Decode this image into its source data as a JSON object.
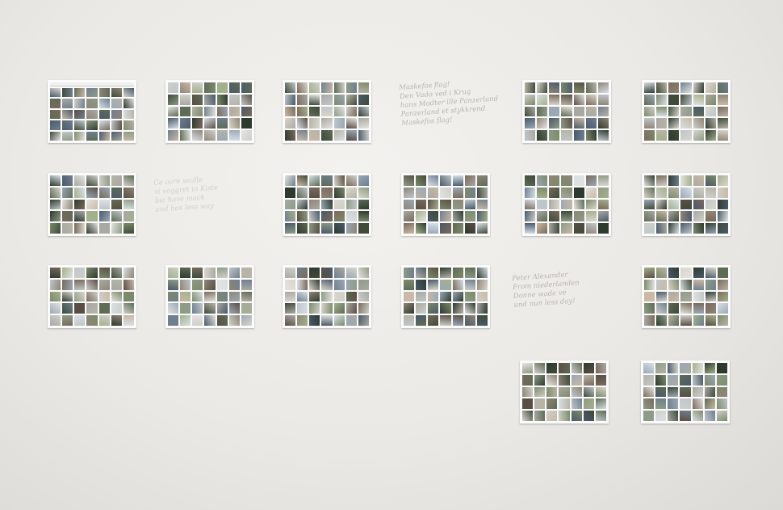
{
  "exhibit": {
    "wall_color": "#ecebe7",
    "notes": [
      {
        "id": "note-top",
        "text": "Maskefos flag!\nDen Vado ved i Krug\nhans Modter ille Panzerland\nPanzerland et stykkrend\nMaskefos flag!"
      },
      {
        "id": "note-middle-left",
        "text": "Ce ovre sealle\nvi voggret in Kiste\nbie have mack\nand has less way"
      },
      {
        "id": "note-lower-right",
        "text": "Peter Alexander\nFrom niederlanden\nDonne wade ve\nund nun less day!"
      }
    ]
  }
}
